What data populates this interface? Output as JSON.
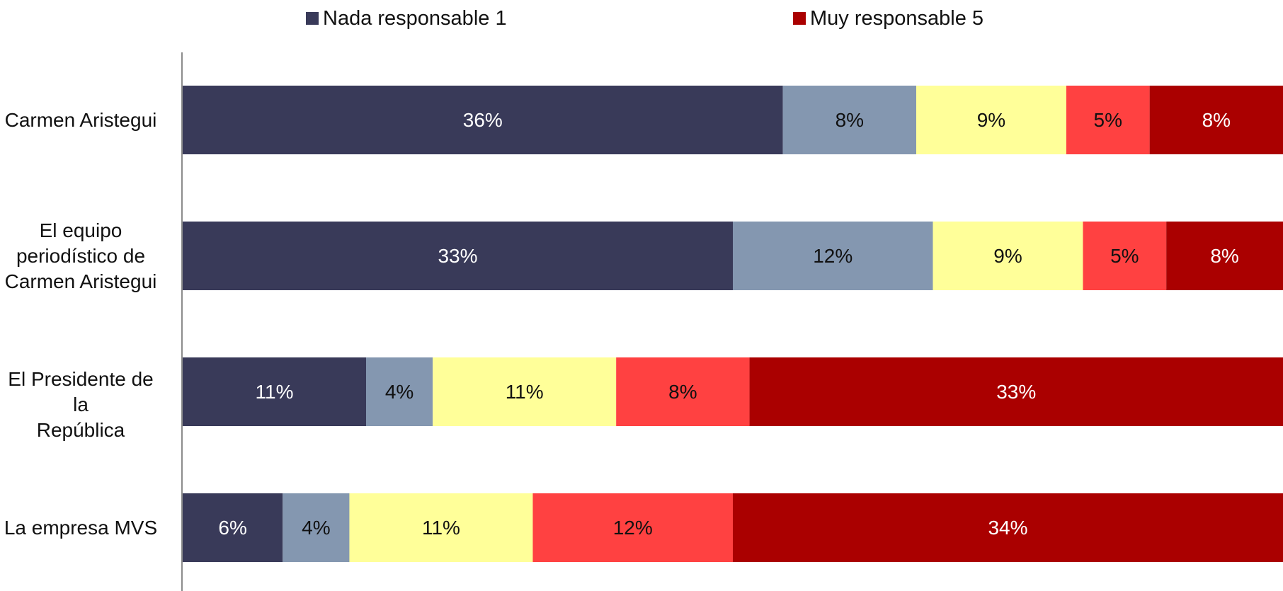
{
  "chart_data": {
    "type": "bar",
    "orientation": "horizontal",
    "stacked": true,
    "categories": [
      "Carmen Aristegui",
      "El equipo\nperiodístico de\nCarmen Aristegui",
      "El Presidente de la\nRepública",
      "La empresa MVS"
    ],
    "series": [
      {
        "name": "Nada responsable 1",
        "color": "#393A59",
        "values": [
          36,
          33,
          11,
          6
        ],
        "labels": [
          "36%",
          "33%",
          "11%",
          "6%"
        ],
        "label_color": "#ffffff"
      },
      {
        "color": "#8497B0",
        "values": [
          8,
          12,
          4,
          4
        ],
        "labels": [
          "8%",
          "12%",
          "4%",
          "4%"
        ],
        "label_color": "#111111"
      },
      {
        "color": "#FFFF99",
        "values": [
          9,
          9,
          11,
          11
        ],
        "labels": [
          "9%",
          "9%",
          "11%",
          "11%"
        ],
        "label_color": "#111111"
      },
      {
        "color": "#FF4141",
        "values": [
          5,
          5,
          8,
          12
        ],
        "labels": [
          "5%",
          "5%",
          "8%",
          "12%"
        ],
        "label_color": "#111111"
      },
      {
        "name": "Muy responsable 5",
        "color": "#AA0000",
        "values": [
          8,
          8,
          33,
          34
        ],
        "labels": [
          "8%",
          "8%",
          "33%",
          "34%"
        ],
        "label_color": "#ffffff"
      }
    ],
    "legend": [
      "Nada responsable 1",
      "Muy responsable 5"
    ],
    "legend_position": "top",
    "grid": false,
    "xlim": [
      0,
      66
    ]
  }
}
